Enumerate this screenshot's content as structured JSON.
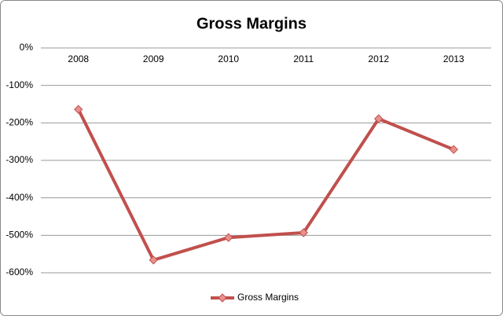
{
  "chart_data": {
    "type": "line",
    "title": "Gross Margins",
    "categories": [
      "2008",
      "2009",
      "2010",
      "2011",
      "2012",
      "2013"
    ],
    "series": [
      {
        "name": "Gross Margins",
        "color": "#c0504d",
        "values": [
          -164,
          -566,
          -506,
          -493,
          -189,
          -271
        ]
      }
    ],
    "ylim": [
      -600,
      0
    ],
    "yticks": [
      {
        "value": 0,
        "label": "0%"
      },
      {
        "value": -100,
        "label": "-100%"
      },
      {
        "value": -200,
        "label": "-200%"
      },
      {
        "value": -300,
        "label": "-300%"
      },
      {
        "value": -400,
        "label": "-400%"
      },
      {
        "value": -500,
        "label": "-500%"
      },
      {
        "value": -600,
        "label": "-600%"
      }
    ],
    "grid": true,
    "legend": "bottom"
  }
}
